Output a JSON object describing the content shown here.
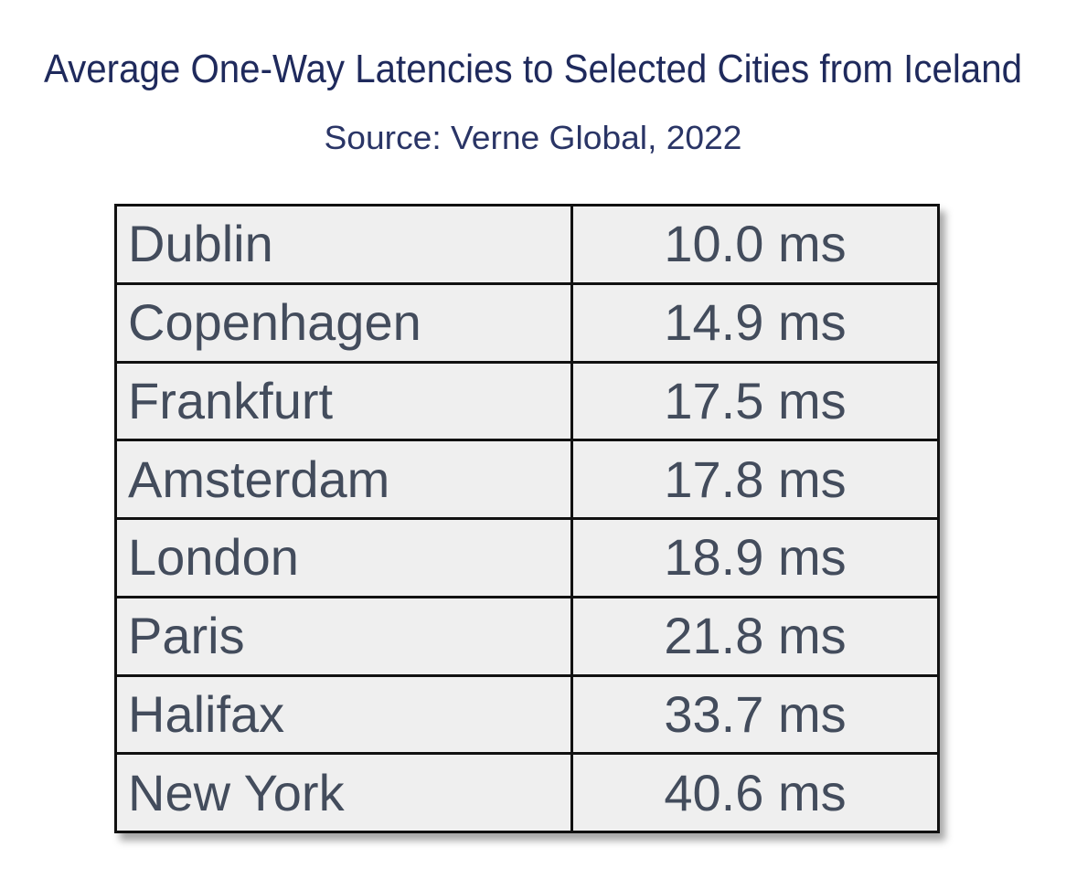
{
  "header": {
    "title": "Average One-Way Latencies to Selected Cities from Iceland",
    "subtitle": "Source: Verne Global, 2022"
  },
  "table": {
    "rows": [
      [
        "Dublin",
        "10.0 ms"
      ],
      [
        "Copenhagen",
        "14.9 ms"
      ],
      [
        "Frankfurt",
        "17.5 ms"
      ],
      [
        "Amsterdam",
        "17.8 ms"
      ],
      [
        "London",
        "18.9 ms"
      ],
      [
        "Paris",
        "21.8 ms"
      ],
      [
        "Halifax",
        "33.7 ms"
      ],
      [
        "New York",
        "40.6 ms"
      ]
    ]
  }
}
